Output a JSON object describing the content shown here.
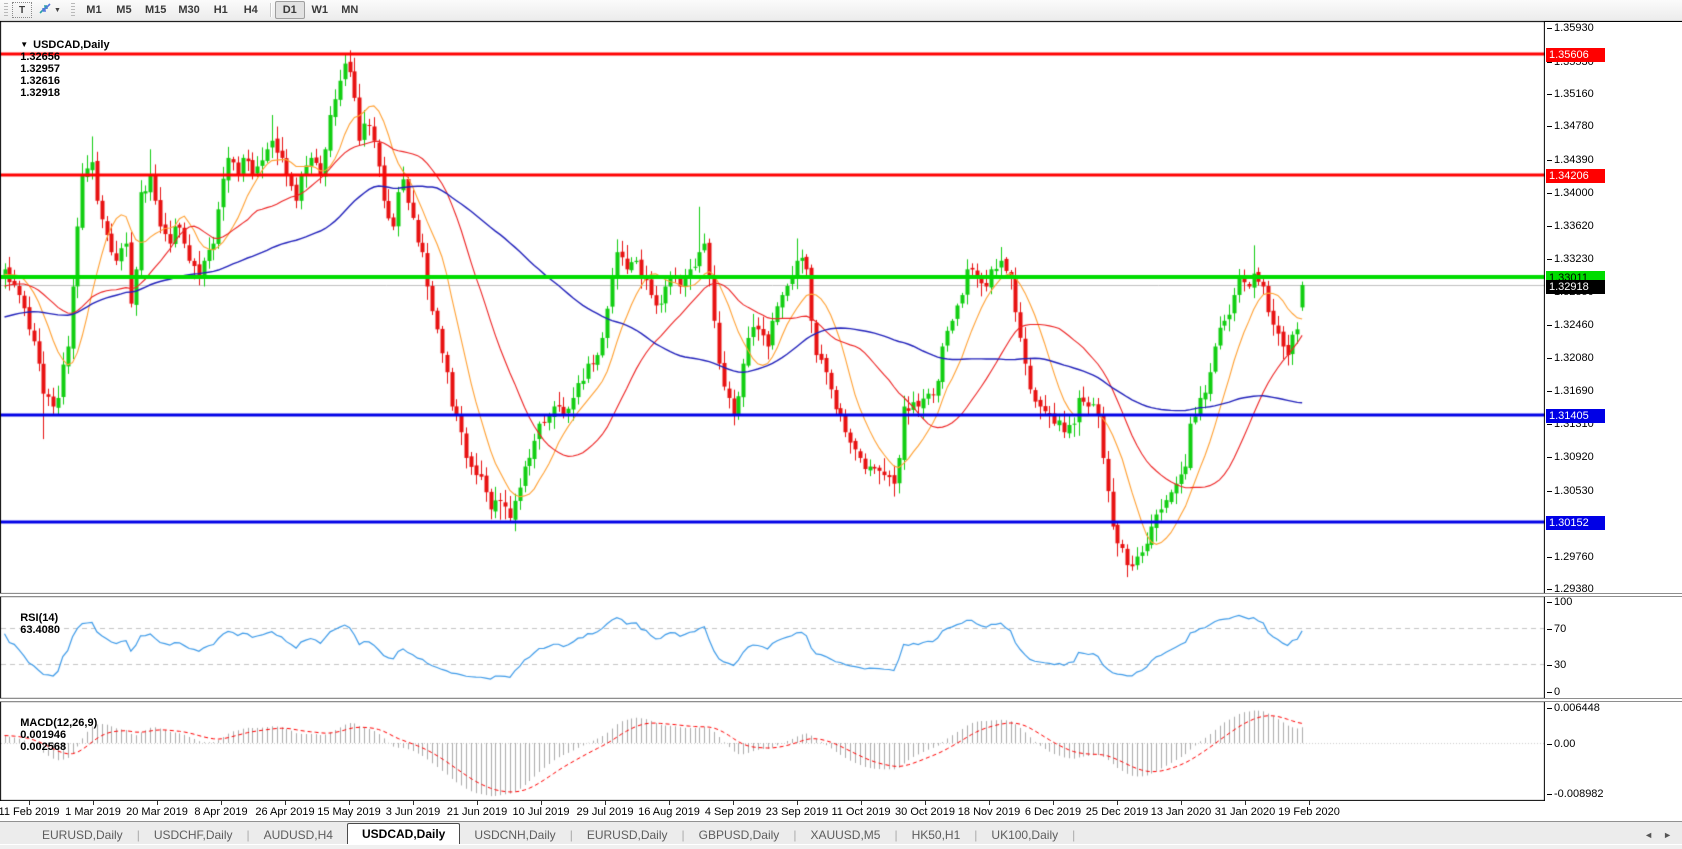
{
  "toolbar": {
    "text_tool_label": "T",
    "dropdown_glyph": "▼",
    "timeframes": [
      "M1",
      "M5",
      "M15",
      "M30",
      "H1",
      "H4",
      "D1",
      "W1",
      "MN"
    ],
    "active_timeframe": "D1"
  },
  "chart": {
    "title": "USDCAD,Daily",
    "dropdown_glyph": "▼",
    "ohlc": {
      "open": "1.32656",
      "high": "1.32957",
      "low": "1.32616",
      "close": "1.32918"
    }
  },
  "chart_data": {
    "type": "candlestick",
    "symbol": "USDCAD",
    "timeframe": "Daily",
    "num_candles": 268,
    "price_range": [
      1.29325,
      1.35985
    ],
    "up_color": "#12CE12",
    "down_color": "#E81212",
    "current_price": {
      "label": "1.32918",
      "price": 1.32918,
      "line_color": "#C0C0C0"
    },
    "y_ticks": [
      "1.35930",
      "1.35530",
      "1.35160",
      "1.34780",
      "1.34390",
      "1.34000",
      "1.33620",
      "1.33230",
      "1.32850",
      "1.32460",
      "1.32080",
      "1.31690",
      "1.31310",
      "1.30920",
      "1.30530",
      "1.30140",
      "1.29760",
      "1.29380"
    ],
    "x_ticks": [
      "11 Feb 2019",
      "1 Mar 2019",
      "20 Mar 2019",
      "8 Apr 2019",
      "26 Apr 2019",
      "15 May 2019",
      "3 Jun 2019",
      "21 Jun 2019",
      "10 Jul 2019",
      "29 Jul 2019",
      "16 Aug 2019",
      "4 Sep 2019",
      "23 Sep 2019",
      "11 Oct 2019",
      "30 Oct 2019",
      "18 Nov 2019",
      "6 Dec 2019",
      "25 Dec 2019",
      "13 Jan 2020",
      "31 Jan 2020",
      "19 Feb 2020"
    ],
    "hlines": [
      {
        "label": "1.35606",
        "price": 1.35606,
        "color": "#FF0000",
        "text_color": "#FFFFFF",
        "width": 3
      },
      {
        "label": "1.34206",
        "price": 1.34206,
        "color": "#FF0000",
        "text_color": "#FFFFFF",
        "width": 3
      },
      {
        "label": "1.33011",
        "price": 1.33011,
        "color": "#00DC00",
        "text_color": "#000000",
        "width": 4
      },
      {
        "label": "1.31405",
        "price": 1.31405,
        "color": "#0000E6",
        "text_color": "#FFFFFF",
        "width": 3
      },
      {
        "label": "1.30152",
        "price": 1.30152,
        "color": "#0000E6",
        "text_color": "#FFFFFF",
        "width": 3
      }
    ],
    "moving_averages": [
      {
        "period": 10,
        "color": "#FFA133"
      },
      {
        "period": 25,
        "color": "#EE2222"
      },
      {
        "period": 62,
        "color": "#2121BB"
      }
    ],
    "close_path": [
      [
        0,
        1.331
      ],
      [
        1,
        1.3295
      ],
      [
        3,
        1.328
      ],
      [
        5,
        1.324
      ],
      [
        7,
        1.32
      ],
      [
        8,
        1.3165
      ],
      [
        10,
        1.315
      ],
      [
        11,
        1.316
      ],
      [
        13,
        1.322
      ],
      [
        14,
        1.329
      ],
      [
        15,
        1.336
      ],
      [
        16,
        1.342
      ],
      [
        18,
        1.3435
      ],
      [
        19,
        1.339
      ],
      [
        21,
        1.335
      ],
      [
        22,
        1.333
      ],
      [
        23,
        1.332
      ],
      [
        25,
        1.334
      ],
      [
        26,
        1.327
      ],
      [
        27,
        1.331
      ],
      [
        28,
        1.34
      ],
      [
        30,
        1.342
      ],
      [
        31,
        1.339
      ],
      [
        32,
        1.336
      ],
      [
        34,
        1.334
      ],
      [
        35,
        1.336
      ],
      [
        37,
        1.334
      ],
      [
        38,
        1.332
      ],
      [
        40,
        1.33
      ],
      [
        41,
        1.332
      ],
      [
        43,
        1.334
      ],
      [
        44,
        1.338
      ],
      [
        46,
        1.344
      ],
      [
        48,
        1.342
      ],
      [
        49,
        1.344
      ],
      [
        51,
        1.342
      ],
      [
        52,
        1.343
      ],
      [
        54,
        1.345
      ],
      [
        55,
        1.346
      ],
      [
        57,
        1.344
      ],
      [
        58,
        1.342
      ],
      [
        60,
        1.339
      ],
      [
        61,
        1.342
      ],
      [
        63,
        1.344
      ],
      [
        65,
        1.342
      ],
      [
        66,
        1.345
      ],
      [
        67,
        1.349
      ],
      [
        69,
        1.353
      ],
      [
        70,
        1.355
      ],
      [
        71,
        1.354
      ],
      [
        72,
        1.351
      ],
      [
        73,
        1.346
      ],
      [
        74,
        1.348
      ],
      [
        76,
        1.346
      ],
      [
        77,
        1.343
      ],
      [
        78,
        1.339
      ],
      [
        80,
        1.336
      ],
      [
        81,
        1.34
      ],
      [
        82,
        1.3415
      ],
      [
        84,
        1.337
      ],
      [
        86,
        1.333
      ],
      [
        87,
        1.329
      ],
      [
        89,
        1.324
      ],
      [
        91,
        1.319
      ],
      [
        92,
        1.315
      ],
      [
        94,
        1.312
      ],
      [
        95,
        1.309
      ],
      [
        97,
        1.307
      ],
      [
        99,
        1.305
      ],
      [
        100,
        1.303
      ],
      [
        102,
        1.304
      ],
      [
        104,
        1.302
      ],
      [
        105,
        1.304
      ],
      [
        107,
        1.308
      ],
      [
        109,
        1.311
      ],
      [
        110,
        1.313
      ],
      [
        112,
        1.314
      ],
      [
        114,
        1.315
      ],
      [
        115,
        1.314
      ],
      [
        117,
        1.316
      ],
      [
        119,
        1.318
      ],
      [
        120,
        1.32
      ],
      [
        122,
        1.321
      ],
      [
        123,
        1.323
      ],
      [
        125,
        1.33
      ],
      [
        126,
        1.333
      ],
      [
        128,
        1.331
      ],
      [
        130,
        1.332
      ],
      [
        131,
        1.33
      ],
      [
        133,
        1.328
      ],
      [
        135,
        1.327
      ],
      [
        136,
        1.329
      ],
      [
        138,
        1.33
      ],
      [
        139,
        1.329
      ],
      [
        141,
        1.331
      ],
      [
        143,
        1.333
      ],
      [
        144,
        1.334
      ],
      [
        145,
        1.33
      ],
      [
        146,
        1.325
      ],
      [
        147,
        1.32
      ],
      [
        149,
        1.316
      ],
      [
        150,
        1.314
      ],
      [
        152,
        1.32
      ],
      [
        153,
        1.323
      ],
      [
        155,
        1.324
      ],
      [
        157,
        1.322
      ],
      [
        158,
        1.325
      ],
      [
        160,
        1.328
      ],
      [
        162,
        1.33
      ],
      [
        163,
        1.332
      ],
      [
        165,
        1.331
      ],
      [
        166,
        1.325
      ],
      [
        167,
        1.321
      ],
      [
        169,
        1.319
      ],
      [
        170,
        1.317
      ],
      [
        172,
        1.314
      ],
      [
        173,
        1.312
      ],
      [
        175,
        1.31
      ],
      [
        176,
        1.309
      ],
      [
        178,
        1.308
      ],
      [
        180,
        1.3075
      ],
      [
        181,
        1.307
      ],
      [
        183,
        1.306
      ],
      [
        184,
        1.309
      ],
      [
        185,
        1.315
      ],
      [
        187,
        1.3155
      ],
      [
        188,
        1.315
      ],
      [
        190,
        1.3165
      ],
      [
        192,
        1.318
      ],
      [
        193,
        1.322
      ],
      [
        195,
        1.325
      ],
      [
        197,
        1.328
      ],
      [
        198,
        1.331
      ],
      [
        200,
        1.33
      ],
      [
        202,
        1.329
      ],
      [
        203,
        1.331
      ],
      [
        205,
        1.332
      ],
      [
        207,
        1.33
      ],
      [
        208,
        1.326
      ],
      [
        210,
        1.32
      ],
      [
        211,
        1.317
      ],
      [
        213,
        1.315
      ],
      [
        215,
        1.314
      ],
      [
        216,
        1.313
      ],
      [
        218,
        1.312
      ],
      [
        220,
        1.313
      ],
      [
        221,
        1.316
      ],
      [
        223,
        1.315
      ],
      [
        225,
        1.314
      ],
      [
        226,
        1.309
      ],
      [
        228,
        1.301
      ],
      [
        230,
        1.2985
      ],
      [
        231,
        1.2965
      ],
      [
        233,
        1.2975
      ],
      [
        235,
        1.299
      ],
      [
        236,
        1.301
      ],
      [
        238,
        1.303
      ],
      [
        240,
        1.305
      ],
      [
        241,
        1.306
      ],
      [
        243,
        1.308
      ],
      [
        244,
        1.313
      ],
      [
        246,
        1.316
      ],
      [
        248,
        1.319
      ],
      [
        249,
        1.322
      ],
      [
        251,
        1.325
      ],
      [
        253,
        1.328
      ],
      [
        254,
        1.33
      ],
      [
        256,
        1.329
      ],
      [
        257,
        1.3305
      ],
      [
        259,
        1.329
      ],
      [
        260,
        1.326
      ],
      [
        262,
        1.3235
      ],
      [
        263,
        1.322
      ],
      [
        264,
        1.321
      ],
      [
        266,
        1.324
      ],
      [
        267,
        1.32918
      ]
    ],
    "spikes": [
      {
        "i": 8,
        "side": "low",
        "price": 1.3112
      },
      {
        "i": 18,
        "side": "high",
        "price": 1.3465
      },
      {
        "i": 30,
        "side": "high",
        "price": 1.345
      },
      {
        "i": 55,
        "side": "high",
        "price": 1.349
      },
      {
        "i": 70,
        "side": "high",
        "price": 1.356
      },
      {
        "i": 102,
        "side": "low",
        "price": 1.3018
      },
      {
        "i": 126,
        "side": "high",
        "price": 1.3345
      },
      {
        "i": 143,
        "side": "high",
        "price": 1.3383
      },
      {
        "i": 150,
        "side": "low",
        "price": 1.3128
      },
      {
        "i": 163,
        "side": "high",
        "price": 1.3346
      },
      {
        "i": 183,
        "side": "low",
        "price": 1.3045
      },
      {
        "i": 205,
        "side": "high",
        "price": 1.3336
      },
      {
        "i": 231,
        "side": "low",
        "price": 1.2951
      },
      {
        "i": 257,
        "side": "high",
        "price": 1.3338
      }
    ],
    "last_candle": {
      "open": 1.32656,
      "high": 1.32957,
      "low": 1.32616,
      "close": 1.32918
    },
    "synthesis": {
      "prehistory_bars": 80,
      "prehistory_start": 1.316,
      "prehistory_end": 1.331,
      "close_noise": 0.0009,
      "wick_noise": 0.0014
    },
    "indicators": {
      "rsi": {
        "label": "RSI(14)",
        "value": "63.4080",
        "period": 14,
        "color": "#3E9BE9",
        "levels": [
          70,
          30
        ],
        "scale_ticks": [
          {
            "label": "100",
            "v": 100
          },
          {
            "label": "70",
            "v": 70
          },
          {
            "label": "30",
            "v": 30
          },
          {
            "label": "0",
            "v": 0
          }
        ]
      },
      "macd": {
        "label": "MACD(12,26,9)",
        "value": "0.001946",
        "signal_value": "0.002568",
        "fast": 12,
        "slow": 26,
        "signal": 9,
        "histogram_color": "#ABABAB",
        "signal_color": "#FF0000",
        "range": [
          -0.008982,
          0.006448
        ],
        "scale_ticks": [
          {
            "label": "0.006448",
            "v": 0.006448
          },
          {
            "label": "0.00",
            "v": 0
          },
          {
            "label": "-0.008982",
            "v": -0.008982
          }
        ]
      }
    },
    "legend_position": "none",
    "grid": false
  },
  "tabs": {
    "items": [
      {
        "label": "EURUSD,Daily",
        "active": false
      },
      {
        "label": "USDCHF,Daily",
        "active": false
      },
      {
        "label": "AUDUSD,H4",
        "active": false
      },
      {
        "label": "USDCAD,Daily",
        "active": true
      },
      {
        "label": "USDCNH,Daily",
        "active": false
      },
      {
        "label": "EURUSD,Daily",
        "active": false
      },
      {
        "label": "GBPUSD,Daily",
        "active": false
      },
      {
        "label": "XAUUSD,M5",
        "active": false
      },
      {
        "label": "HK50,H1",
        "active": false
      },
      {
        "label": "UK100,Daily",
        "active": false
      }
    ],
    "scroll_left_glyph": "◄",
    "scroll_right_glyph": "►"
  }
}
